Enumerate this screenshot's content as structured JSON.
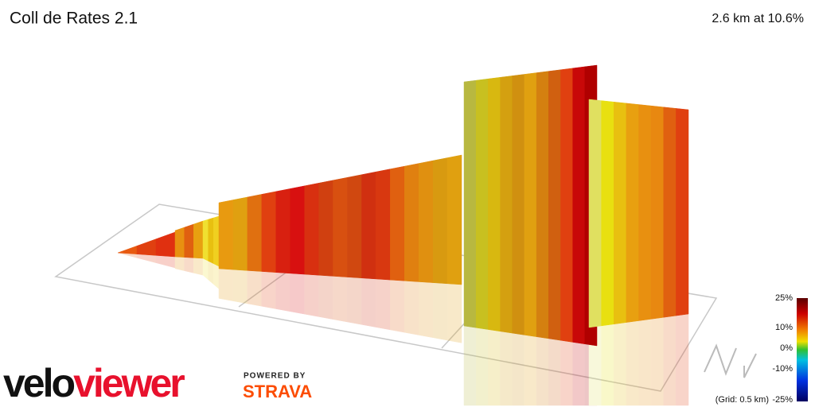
{
  "header": {
    "title": "Coll de Rates 2.1",
    "stats": "2.6 km at 10.6%"
  },
  "logo": {
    "brand_first": "velo",
    "brand_second": "viewer",
    "powered_by": "POWERED BY",
    "partner": "STRAVA"
  },
  "legend": {
    "labels": [
      "25%",
      "10%",
      "0%",
      "-10%",
      "-25%"
    ],
    "grid_note": "(Grid: 0.5 km)"
  }
}
